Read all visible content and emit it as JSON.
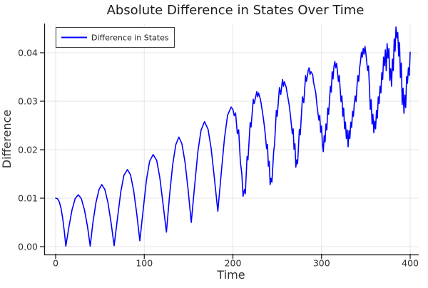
{
  "title": "Absolute Difference in States Over Time",
  "legend": {
    "label": "Difference in States"
  },
  "axes": {
    "x": {
      "label": "Time",
      "ticks": [
        "0",
        "100",
        "200",
        "300",
        "400"
      ]
    },
    "y": {
      "label": "Difference",
      "ticks": [
        "0.00",
        "0.01",
        "0.02",
        "0.03",
        "0.04"
      ]
    }
  },
  "colors": {
    "series": "#0000FF",
    "grid": "#E5E5E5",
    "spine": "#141414",
    "tick_text": "#2E2E33",
    "title_text": "#1C1C1C",
    "legend_border": "#3C3C44",
    "background": "#FFFFFF"
  },
  "chart_data": {
    "type": "line",
    "title": "Absolute Difference in States Over Time",
    "xlabel": "Time",
    "ylabel": "Difference",
    "xlim": [
      -12,
      410
    ],
    "ylim": [
      -0.0016,
      0.046
    ],
    "xticks": [
      0,
      100,
      200,
      300,
      400
    ],
    "yticks": [
      0,
      0.01,
      0.02,
      0.03,
      0.04
    ],
    "ytick_labels": [
      "0.00",
      "0.01",
      "0.02",
      "0.03",
      "0.04"
    ],
    "grid": true,
    "legend_position": "top-left",
    "series": [
      {
        "name": "Difference in States",
        "color": "#0000FF",
        "points": [
          [
            0,
            0.01
          ],
          [
            2,
            0.0099
          ],
          [
            4,
            0.0093
          ],
          [
            6,
            0.008
          ],
          [
            8,
            0.0058
          ],
          [
            10,
            0.0028
          ],
          [
            11.5,
            0.0001
          ],
          [
            15,
            0.0041
          ],
          [
            18.5,
            0.0076
          ],
          [
            22,
            0.0099
          ],
          [
            25.5,
            0.0107
          ],
          [
            29,
            0.0099
          ],
          [
            32.5,
            0.0076
          ],
          [
            36,
            0.0041
          ],
          [
            39,
            0.0001
          ],
          [
            42,
            0.0049
          ],
          [
            45.5,
            0.0091
          ],
          [
            49,
            0.0118
          ],
          [
            52,
            0.0128
          ],
          [
            55.5,
            0.0118
          ],
          [
            59,
            0.0091
          ],
          [
            62.5,
            0.005
          ],
          [
            66,
            0.0002
          ],
          [
            70,
            0.0062
          ],
          [
            73.5,
            0.0113
          ],
          [
            77,
            0.0147
          ],
          [
            81,
            0.0159
          ],
          [
            84.5,
            0.0148
          ],
          [
            88,
            0.0116
          ],
          [
            91.5,
            0.0068
          ],
          [
            95,
            0.0012
          ],
          [
            99,
            0.008
          ],
          [
            102.5,
            0.0138
          ],
          [
            106,
            0.0176
          ],
          [
            110,
            0.019
          ],
          [
            114,
            0.0178
          ],
          [
            117.5,
            0.0143
          ],
          [
            121,
            0.0091
          ],
          [
            125,
            0.003
          ],
          [
            128.5,
            0.0105
          ],
          [
            132,
            0.0168
          ],
          [
            135.5,
            0.021
          ],
          [
            139,
            0.0226
          ],
          [
            142.5,
            0.0212
          ],
          [
            146,
            0.0174
          ],
          [
            149.5,
            0.0117
          ],
          [
            153,
            0.005
          ],
          [
            157,
            0.0129
          ],
          [
            160.5,
            0.0196
          ],
          [
            164,
            0.024
          ],
          [
            168,
            0.0258
          ],
          [
            172,
            0.0242
          ],
          [
            175.5,
            0.0202
          ],
          [
            179,
            0.0143
          ],
          [
            183,
            0.0073
          ],
          [
            187,
            0.0155
          ],
          [
            190.5,
            0.0224
          ],
          [
            194,
            0.0271
          ],
          [
            198,
            0.0288
          ],
          [
            200,
            0.0283
          ],
          [
            201.5,
            0.027
          ],
          [
            203,
            0.0276
          ],
          [
            205,
            0.0233
          ],
          [
            206.5,
            0.0241
          ],
          [
            208.5,
            0.0173
          ],
          [
            210,
            0.0152
          ],
          [
            211.5,
            0.0104
          ],
          [
            213,
            0.0118
          ],
          [
            214,
            0.0109
          ],
          [
            216,
            0.0186
          ],
          [
            217,
            0.0179
          ],
          [
            219.5,
            0.0256
          ],
          [
            220.5,
            0.0247
          ],
          [
            223,
            0.0304
          ],
          [
            224,
            0.0295
          ],
          [
            227,
            0.032
          ],
          [
            228,
            0.0309
          ],
          [
            229,
            0.0317
          ],
          [
            231,
            0.0304
          ],
          [
            232,
            0.0294
          ],
          [
            234.5,
            0.0263
          ],
          [
            236,
            0.0241
          ],
          [
            238,
            0.0202
          ],
          [
            239,
            0.0211
          ],
          [
            240,
            0.0166
          ],
          [
            241,
            0.0176
          ],
          [
            242,
            0.0128
          ],
          [
            243,
            0.0141
          ],
          [
            244,
            0.0133
          ],
          [
            246,
            0.0196
          ],
          [
            247,
            0.0211
          ],
          [
            249,
            0.0281
          ],
          [
            250,
            0.0269
          ],
          [
            252.5,
            0.0328
          ],
          [
            254,
            0.0314
          ],
          [
            256,
            0.0345
          ],
          [
            257,
            0.0331
          ],
          [
            258,
            0.034
          ],
          [
            260,
            0.033
          ],
          [
            261,
            0.0319
          ],
          [
            263.5,
            0.0292
          ],
          [
            265,
            0.0269
          ],
          [
            267,
            0.0233
          ],
          [
            268,
            0.0243
          ],
          [
            269,
            0.0201
          ],
          [
            270,
            0.0212
          ],
          [
            271,
            0.0164
          ],
          [
            272,
            0.0179
          ],
          [
            273,
            0.0171
          ],
          [
            275,
            0.0242
          ],
          [
            276,
            0.0231
          ],
          [
            278.5,
            0.0309
          ],
          [
            280,
            0.0297
          ],
          [
            282,
            0.0353
          ],
          [
            283,
            0.0341
          ],
          [
            285,
            0.0364
          ],
          [
            286,
            0.0369
          ],
          [
            287,
            0.0355
          ],
          [
            288,
            0.0361
          ],
          [
            290,
            0.0355
          ],
          [
            291,
            0.0339
          ],
          [
            293.5,
            0.0317
          ],
          [
            295,
            0.0289
          ],
          [
            297,
            0.0261
          ],
          [
            298,
            0.0271
          ],
          [
            299,
            0.0236
          ],
          [
            300,
            0.0249
          ],
          [
            301,
            0.0211
          ],
          [
            302,
            0.0196
          ],
          [
            303,
            0.0229
          ],
          [
            304,
            0.0216
          ],
          [
            305,
            0.0253
          ],
          [
            306,
            0.0241
          ],
          [
            307,
            0.0286
          ],
          [
            308,
            0.0273
          ],
          [
            310,
            0.0331
          ],
          [
            311,
            0.0319
          ],
          [
            312,
            0.0361
          ],
          [
            313,
            0.0346
          ],
          [
            314,
            0.0371
          ],
          [
            315,
            0.0382
          ],
          [
            316,
            0.0369
          ],
          [
            317,
            0.0378
          ],
          [
            318,
            0.0361
          ],
          [
            319,
            0.0341
          ],
          [
            320,
            0.0353
          ],
          [
            321,
            0.0326
          ],
          [
            322,
            0.0299
          ],
          [
            323,
            0.0311
          ],
          [
            324,
            0.0269
          ],
          [
            325,
            0.0286
          ],
          [
            326,
            0.0243
          ],
          [
            327,
            0.0257
          ],
          [
            328,
            0.0223
          ],
          [
            329,
            0.0241
          ],
          [
            330,
            0.0206
          ],
          [
            331,
            0.0239
          ],
          [
            332,
            0.0223
          ],
          [
            333,
            0.0257
          ],
          [
            334,
            0.0246
          ],
          [
            335,
            0.0279
          ],
          [
            336,
            0.0269
          ],
          [
            337,
            0.0296
          ],
          [
            338,
            0.0311
          ],
          [
            339,
            0.0299
          ],
          [
            340,
            0.0331
          ],
          [
            341,
            0.0353
          ],
          [
            342,
            0.0341
          ],
          [
            343,
            0.0369
          ],
          [
            344,
            0.0383
          ],
          [
            345,
            0.0401
          ],
          [
            346,
            0.0391
          ],
          [
            347,
            0.0409
          ],
          [
            348,
            0.0397
          ],
          [
            349,
            0.0413
          ],
          [
            350,
            0.0399
          ],
          [
            351,
            0.0381
          ],
          [
            352,
            0.0363
          ],
          [
            353,
            0.0373
          ],
          [
            354,
            0.0331
          ],
          [
            355,
            0.0283
          ],
          [
            356,
            0.0303
          ],
          [
            357,
            0.0253
          ],
          [
            358,
            0.0273
          ],
          [
            359,
            0.0235
          ],
          [
            360,
            0.0259
          ],
          [
            361,
            0.0243
          ],
          [
            362,
            0.0281
          ],
          [
            363,
            0.0265
          ],
          [
            364,
            0.0309
          ],
          [
            365,
            0.0295
          ],
          [
            366,
            0.0331
          ],
          [
            367,
            0.0317
          ],
          [
            368,
            0.0359
          ],
          [
            369,
            0.0345
          ],
          [
            370,
            0.0391
          ],
          [
            371,
            0.0373
          ],
          [
            372,
            0.0406
          ],
          [
            373,
            0.0363
          ],
          [
            374,
            0.0419
          ],
          [
            375,
            0.0389
          ],
          [
            376,
            0.0409
          ],
          [
            377,
            0.0343
          ],
          [
            378,
            0.0367
          ],
          [
            379,
            0.0331
          ],
          [
            380,
            0.0387
          ],
          [
            381,
            0.0363
          ],
          [
            382,
            0.0429
          ],
          [
            383,
            0.0403
          ],
          [
            384,
            0.0453
          ],
          [
            385,
            0.0431
          ],
          [
            386,
            0.0442
          ],
          [
            387,
            0.0393
          ],
          [
            388,
            0.0421
          ],
          [
            389,
            0.0349
          ],
          [
            390,
            0.0379
          ],
          [
            391,
            0.0293
          ],
          [
            392,
            0.0327
          ],
          [
            393,
            0.0275
          ],
          [
            394,
            0.0313
          ],
          [
            395,
            0.0287
          ],
          [
            396,
            0.0351
          ],
          [
            397,
            0.0337
          ],
          [
            398,
            0.0369
          ],
          [
            399,
            0.0353
          ],
          [
            400,
            0.0401
          ]
        ]
      }
    ]
  }
}
